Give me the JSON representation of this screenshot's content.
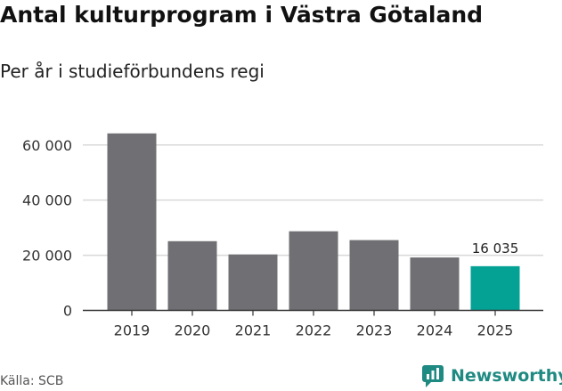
{
  "title": "Antal kulturprogram i Västra Götaland",
  "subtitle": "Per år i studieförbundens regi",
  "source": "Källa: SCB",
  "brand": "Newsworthy",
  "colors": {
    "bar": "#707074",
    "highlight": "#04a294",
    "grid": "#d9d9d9",
    "axis": "#333333",
    "brand": "#1f8a82"
  },
  "chart_data": {
    "type": "bar",
    "title": "Antal kulturprogram i Västra Götaland",
    "subtitle": "Per år i studieförbundens regi",
    "xlabel": "",
    "ylabel": "",
    "categories": [
      "2019",
      "2020",
      "2021",
      "2022",
      "2023",
      "2024",
      "2025"
    ],
    "values": [
      64200,
      25100,
      20300,
      28700,
      25500,
      19200,
      16035
    ],
    "ylim": [
      0,
      68000
    ],
    "yticks": [
      0,
      20000,
      40000,
      60000
    ],
    "ytick_labels": [
      "0",
      "20 000",
      "40 000",
      "60 000"
    ],
    "highlight_index": 6,
    "data_labels": [
      {
        "index": 6,
        "text": "16 035"
      }
    ],
    "grid": true
  }
}
